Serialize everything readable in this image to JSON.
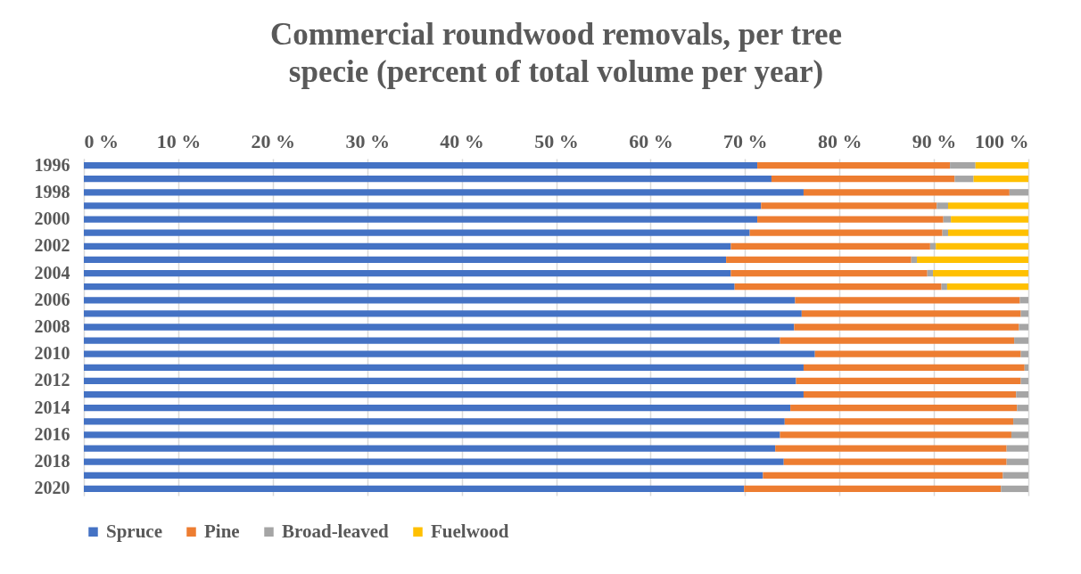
{
  "chart_data": {
    "type": "bar",
    "orientation": "horizontal",
    "stacked": true,
    "title": "Commercial roundwood removals, per tree specie (percent of total volume per year)",
    "categories": [
      "1996",
      null,
      "1998",
      null,
      "2000",
      null,
      "2002",
      null,
      "2004",
      null,
      "2006",
      null,
      "2008",
      null,
      "2010",
      null,
      "2012",
      null,
      "2014",
      null,
      "2016",
      null,
      "2018",
      null,
      "2020"
    ],
    "series": [
      {
        "name": "Spruce",
        "color": "#4472c4",
        "values": [
          71.3,
          72.8,
          76.2,
          71.7,
          71.3,
          70.5,
          68.5,
          68.0,
          68.5,
          68.9,
          75.3,
          76.0,
          75.2,
          73.7,
          77.4,
          76.2,
          75.4,
          76.2,
          74.8,
          74.2,
          73.7,
          73.2,
          74.1,
          71.9,
          69.9
        ]
      },
      {
        "name": "Pine",
        "color": "#ed7d31",
        "values": [
          20.4,
          19.4,
          21.8,
          18.6,
          19.7,
          20.4,
          21.1,
          19.6,
          20.8,
          21.9,
          23.8,
          23.2,
          23.8,
          24.8,
          21.8,
          23.4,
          23.8,
          22.5,
          24.0,
          24.2,
          24.5,
          24.5,
          23.6,
          25.4,
          27.2
        ]
      },
      {
        "name": "Broad-leaved",
        "color": "#a5a5a5",
        "values": [
          2.7,
          2.0,
          2.0,
          1.2,
          0.8,
          0.6,
          0.6,
          0.6,
          0.6,
          0.6,
          0.9,
          0.8,
          1.0,
          1.5,
          0.8,
          0.4,
          0.8,
          1.3,
          1.2,
          1.6,
          1.8,
          2.3,
          2.3,
          2.7,
          2.9
        ]
      },
      {
        "name": "Fuelwood",
        "color": "#ffc000",
        "values": [
          5.6,
          5.8,
          null,
          8.5,
          8.2,
          8.5,
          9.8,
          11.8,
          10.1,
          8.6,
          null,
          null,
          null,
          null,
          null,
          null,
          null,
          null,
          null,
          null,
          null,
          null,
          null,
          null,
          null
        ]
      }
    ],
    "xlim": [
      0,
      100
    ],
    "xticks": [
      {
        "value": 0,
        "label": "0 %"
      },
      {
        "value": 10,
        "label": "10 %"
      },
      {
        "value": 20,
        "label": "20 %"
      },
      {
        "value": 30,
        "label": "30 %"
      },
      {
        "value": 40,
        "label": "40 %"
      },
      {
        "value": 50,
        "label": "50 %"
      },
      {
        "value": 60,
        "label": "60 %"
      },
      {
        "value": 70,
        "label": "70 %"
      },
      {
        "value": 80,
        "label": "80 %"
      },
      {
        "value": 90,
        "label": "90 %"
      },
      {
        "value": 100,
        "label": "100 %"
      }
    ],
    "grid": "x",
    "legend": "bottom"
  }
}
